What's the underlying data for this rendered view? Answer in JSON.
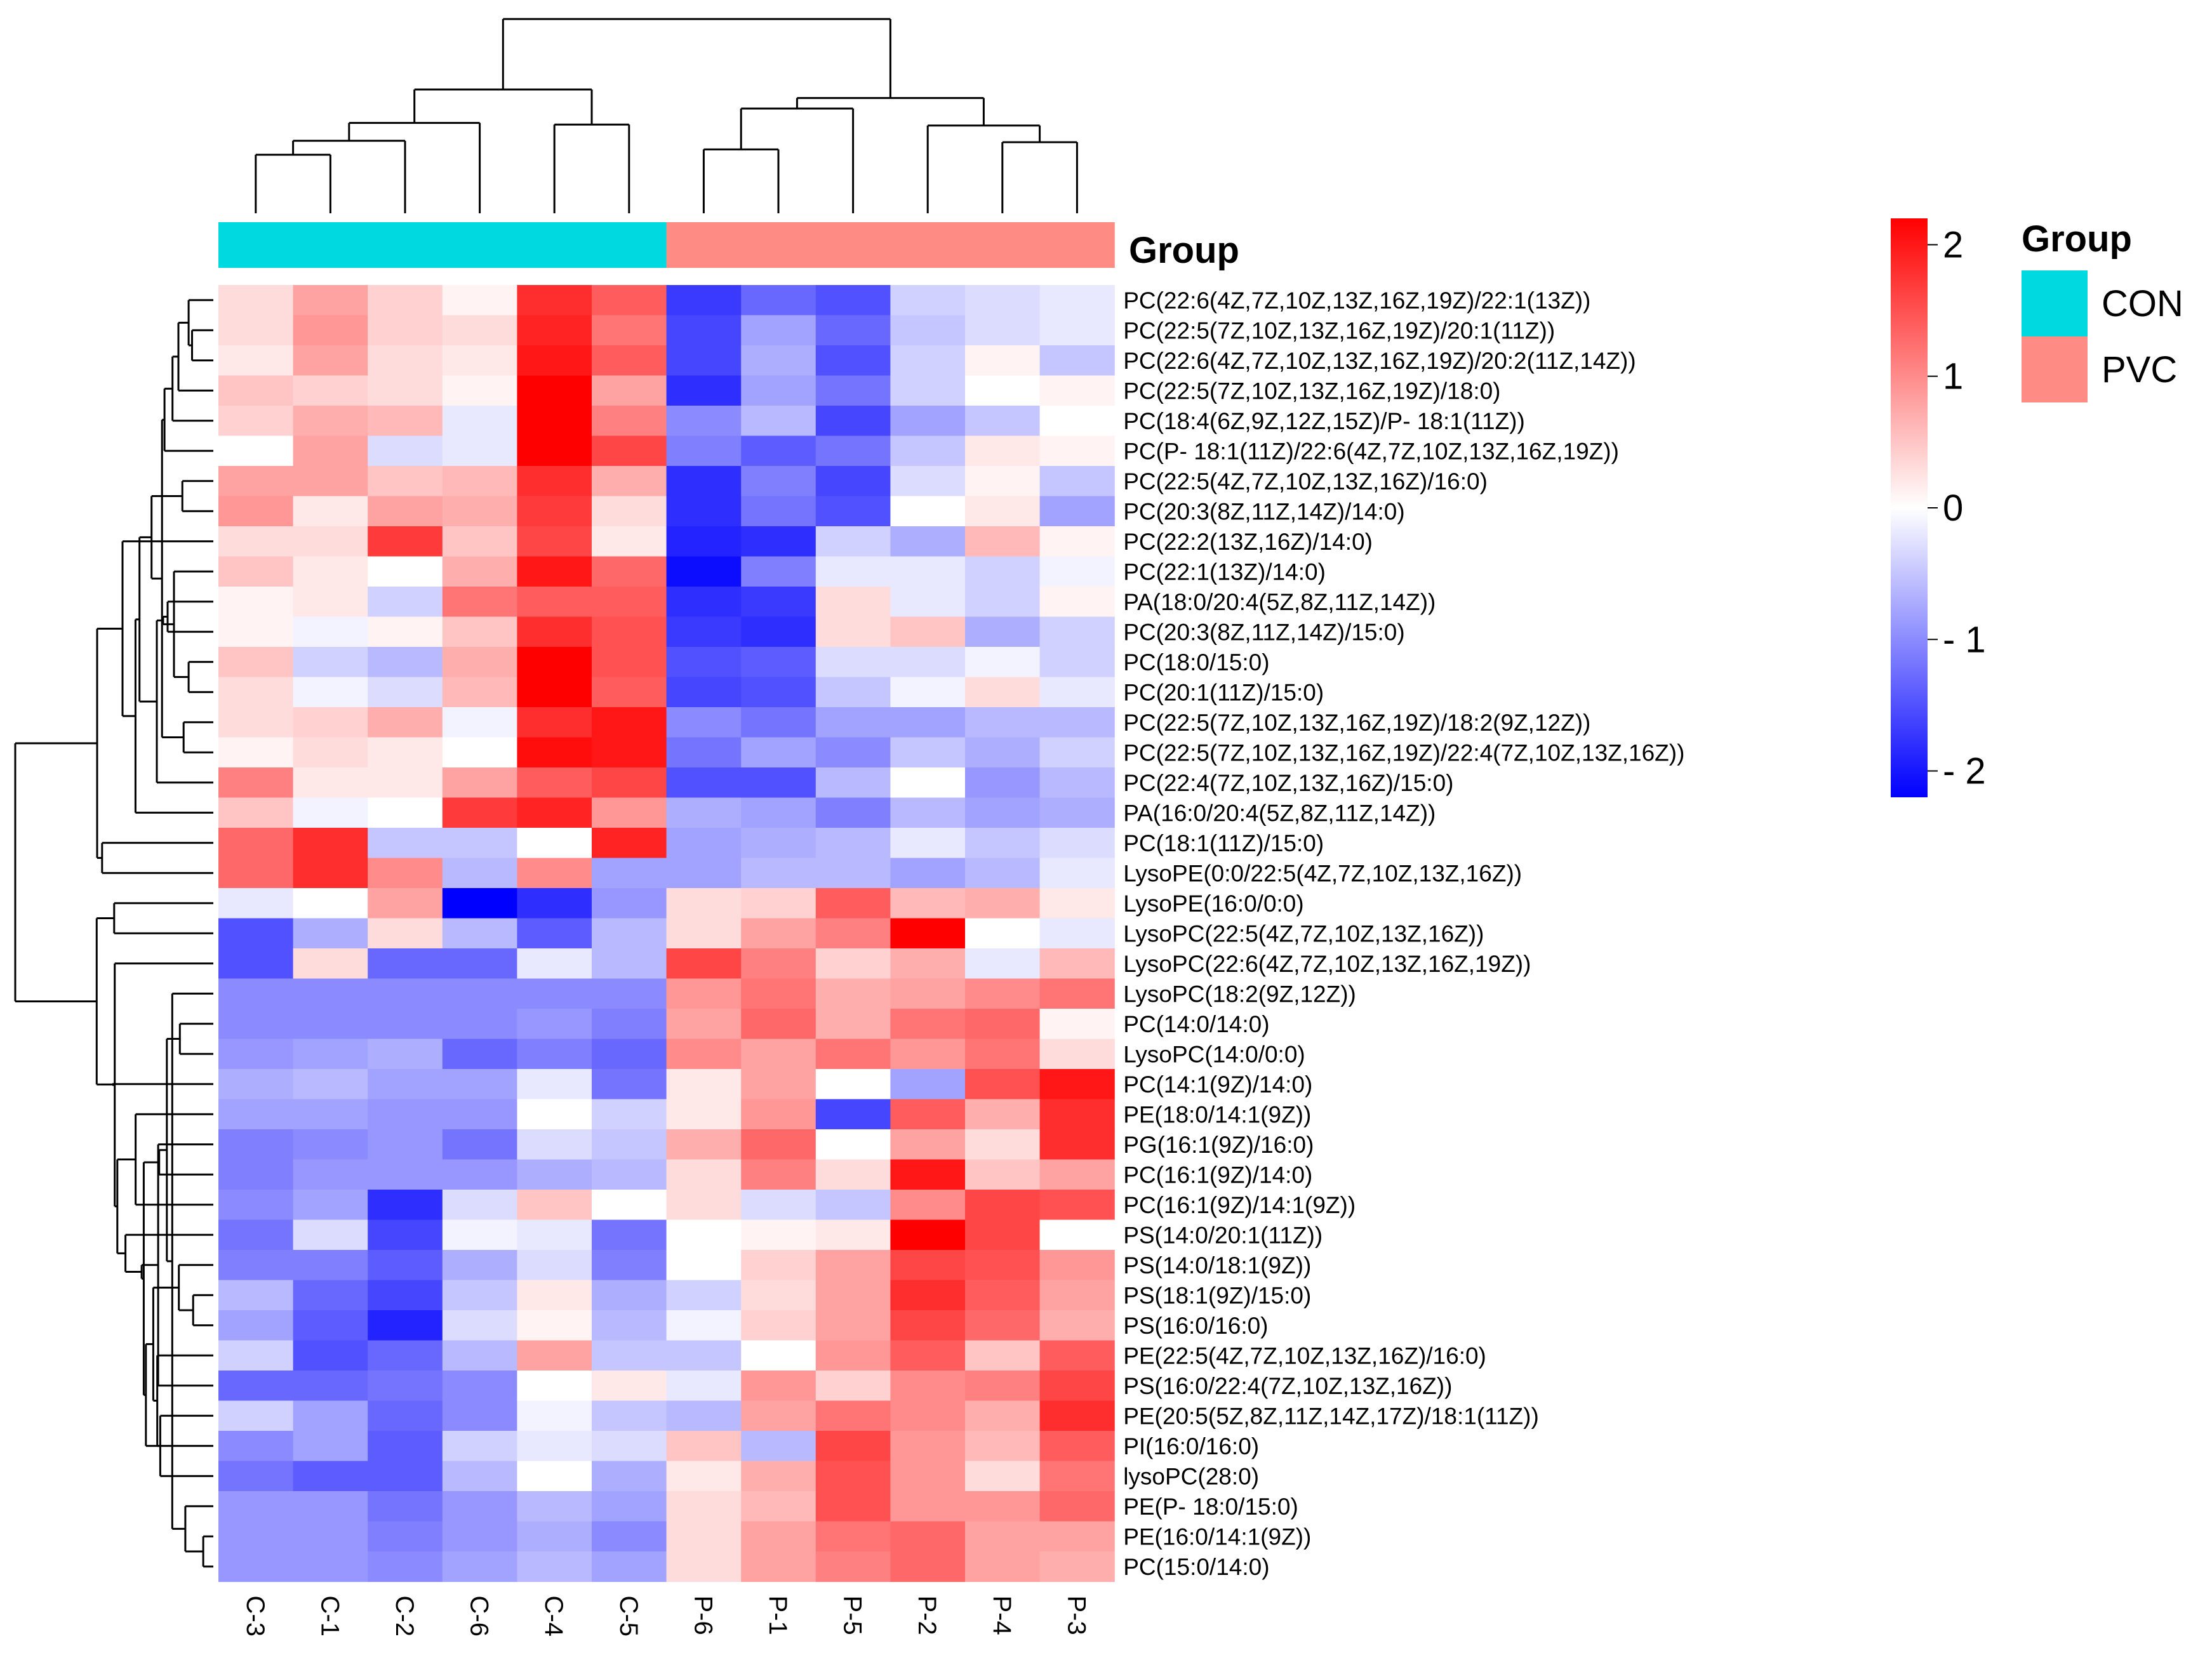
{
  "chart_data": {
    "type": "heatmap",
    "title": "",
    "columns": [
      "C-3",
      "C-1",
      "C-2",
      "C-6",
      "C-4",
      "C-5",
      "P-6",
      "P-1",
      "P-5",
      "P-2",
      "P-4",
      "P-3"
    ],
    "column_groups": [
      "CON",
      "CON",
      "CON",
      "CON",
      "CON",
      "CON",
      "PVC",
      "PVC",
      "PVC",
      "PVC",
      "PVC",
      "PVC"
    ],
    "rows": [
      "PC(22:6(4Z,7Z,10Z,13Z,16Z,19Z)/22:1(13Z))",
      "PC(22:5(7Z,10Z,13Z,16Z,19Z)/20:1(11Z))",
      "PC(22:6(4Z,7Z,10Z,13Z,16Z,19Z)/20:2(11Z,14Z))",
      "PC(22:5(7Z,10Z,13Z,16Z,19Z)/18:0)",
      "PC(18:4(6Z,9Z,12Z,15Z)/P- 18:1(11Z))",
      "PC(P- 18:1(11Z)/22:6(4Z,7Z,10Z,13Z,16Z,19Z))",
      "PC(22:5(4Z,7Z,10Z,13Z,16Z)/16:0)",
      "PC(20:3(8Z,11Z,14Z)/14:0)",
      "PC(22:2(13Z,16Z)/14:0)",
      "PC(22:1(13Z)/14:0)",
      "PA(18:0/20:4(5Z,8Z,11Z,14Z))",
      "PC(20:3(8Z,11Z,14Z)/15:0)",
      "PC(18:0/15:0)",
      "PC(20:1(11Z)/15:0)",
      "PC(22:5(7Z,10Z,13Z,16Z,19Z)/18:2(9Z,12Z))",
      "PC(22:5(7Z,10Z,13Z,16Z,19Z)/22:4(7Z,10Z,13Z,16Z))",
      "PC(22:4(7Z,10Z,13Z,16Z)/15:0)",
      "PA(16:0/20:4(5Z,8Z,11Z,14Z))",
      "PC(18:1(11Z)/15:0)",
      "LysoPE(0:0/22:5(4Z,7Z,10Z,13Z,16Z))",
      "LysoPE(16:0/0:0)",
      "LysoPC(22:5(4Z,7Z,10Z,13Z,16Z))",
      "LysoPC(22:6(4Z,7Z,10Z,13Z,16Z,19Z))",
      "LysoPC(18:2(9Z,12Z))",
      "PC(14:0/14:0)",
      "LysoPC(14:0/0:0)",
      "PC(14:1(9Z)/14:0)",
      "PE(18:0/14:1(9Z))",
      "PG(16:1(9Z)/16:0)",
      "PC(16:1(9Z)/14:0)",
      "PC(16:1(9Z)/14:1(9Z))",
      "PS(14:0/20:1(11Z))",
      "PS(14:0/18:1(9Z))",
      "PS(18:1(9Z)/15:0)",
      "PS(16:0/16:0)",
      "PE(22:5(4Z,7Z,10Z,13Z,16Z)/16:0)",
      "PS(16:0/22:4(7Z,10Z,13Z,16Z))",
      "PE(20:5(5Z,8Z,11Z,14Z,17Z)/18:1(11Z))",
      "PI(16:0/16:0)",
      "lysoPC(28:0)",
      "PE(P- 18:0/15:0)",
      "PE(16:0/14:1(9Z))",
      "PC(15:0/14:0)"
    ],
    "values": [
      [
        0.3,
        0.8,
        0.4,
        0.1,
        1.8,
        1.4,
        -1.7,
        -1.3,
        -1.5,
        -0.4,
        -0.3,
        -0.2
      ],
      [
        0.3,
        0.9,
        0.4,
        0.3,
        1.9,
        1.2,
        -1.6,
        -0.8,
        -1.3,
        -0.5,
        -0.3,
        -0.2
      ],
      [
        0.2,
        0.8,
        0.3,
        0.2,
        2.0,
        1.4,
        -1.6,
        -0.7,
        -1.5,
        -0.4,
        0.1,
        -0.5
      ],
      [
        0.5,
        0.4,
        0.3,
        0.1,
        2.2,
        0.8,
        -1.8,
        -0.8,
        -1.2,
        -0.4,
        0.0,
        0.1
      ],
      [
        0.4,
        0.7,
        0.6,
        -0.2,
        2.2,
        1.1,
        -1.0,
        -0.6,
        -1.6,
        -0.8,
        -0.5,
        0.0
      ],
      [
        0.0,
        0.8,
        -0.3,
        -0.2,
        2.2,
        1.6,
        -1.1,
        -1.4,
        -1.2,
        -0.5,
        0.2,
        0.1
      ],
      [
        0.8,
        0.8,
        0.5,
        0.6,
        1.8,
        0.7,
        -1.8,
        -1.1,
        -1.6,
        -0.3,
        0.1,
        -0.5
      ],
      [
        0.9,
        0.2,
        0.8,
        0.7,
        1.7,
        0.3,
        -1.8,
        -1.2,
        -1.5,
        0.0,
        0.2,
        -0.8
      ],
      [
        0.3,
        0.3,
        1.7,
        0.5,
        1.6,
        0.2,
        -1.9,
        -1.8,
        -0.4,
        -0.7,
        0.6,
        0.1
      ],
      [
        0.5,
        0.2,
        0.0,
        0.7,
        2.0,
        1.3,
        -2.1,
        -1.1,
        -0.2,
        -0.2,
        -0.4,
        -0.1
      ],
      [
        0.1,
        0.2,
        -0.4,
        1.2,
        1.4,
        1.4,
        -1.8,
        -1.7,
        0.3,
        -0.2,
        -0.4,
        0.1
      ],
      [
        0.1,
        -0.1,
        0.1,
        0.5,
        1.8,
        1.5,
        -1.7,
        -1.8,
        0.3,
        0.5,
        -0.7,
        -0.4
      ],
      [
        0.5,
        -0.4,
        -0.6,
        0.7,
        2.2,
        1.5,
        -1.5,
        -1.4,
        -0.3,
        -0.3,
        -0.1,
        -0.4
      ],
      [
        0.3,
        -0.1,
        -0.3,
        0.6,
        2.2,
        1.4,
        -1.6,
        -1.5,
        -0.5,
        -0.1,
        0.3,
        -0.2
      ],
      [
        0.3,
        0.4,
        0.7,
        -0.1,
        1.8,
        2.0,
        -1.0,
        -1.2,
        -0.8,
        -0.8,
        -0.6,
        -0.6
      ],
      [
        0.1,
        0.3,
        0.2,
        0.0,
        2.1,
        2.0,
        -1.2,
        -0.8,
        -1.0,
        -0.5,
        -0.7,
        -0.4
      ],
      [
        1.1,
        0.2,
        0.2,
        0.8,
        1.4,
        1.6,
        -1.5,
        -1.5,
        -0.6,
        0.0,
        -0.9,
        -0.6
      ],
      [
        0.5,
        -0.1,
        0.0,
        1.7,
        1.9,
        0.9,
        -0.7,
        -0.8,
        -1.1,
        -0.6,
        -0.8,
        -0.7
      ],
      [
        1.3,
        1.8,
        -0.5,
        -0.5,
        0.0,
        1.9,
        -0.8,
        -0.7,
        -0.6,
        -0.2,
        -0.5,
        -0.3
      ],
      [
        1.3,
        1.8,
        1.0,
        -0.6,
        1.0,
        -0.8,
        -0.8,
        -0.6,
        -0.6,
        -0.8,
        -0.6,
        -0.2
      ],
      [
        -0.2,
        0.0,
        0.8,
        -2.2,
        -1.8,
        -0.9,
        0.3,
        0.4,
        1.4,
        0.6,
        0.7,
        0.2
      ],
      [
        -1.5,
        -0.7,
        0.3,
        -0.6,
        -1.4,
        -0.6,
        0.3,
        0.8,
        1.1,
        2.2,
        0.0,
        -0.2
      ],
      [
        -1.5,
        0.3,
        -1.3,
        -1.3,
        -0.2,
        -0.6,
        1.6,
        1.1,
        0.4,
        0.7,
        -0.2,
        0.6
      ],
      [
        -1.0,
        -1.0,
        -1.0,
        -1.0,
        -1.0,
        -1.0,
        0.9,
        1.2,
        0.7,
        0.8,
        1.0,
        1.2
      ],
      [
        -1.0,
        -1.0,
        -1.0,
        -1.0,
        -0.9,
        -1.1,
        0.8,
        1.3,
        0.7,
        1.2,
        1.3,
        0.1
      ],
      [
        -0.9,
        -0.8,
        -0.7,
        -1.3,
        -1.1,
        -1.3,
        1.0,
        0.8,
        1.2,
        0.9,
        1.2,
        0.3
      ],
      [
        -0.7,
        -0.6,
        -0.8,
        -0.8,
        -0.2,
        -1.2,
        0.2,
        0.8,
        0.0,
        -0.8,
        1.5,
        2.0
      ],
      [
        -0.8,
        -0.8,
        -0.9,
        -0.9,
        0.0,
        -0.4,
        0.2,
        0.9,
        -1.6,
        1.4,
        0.7,
        1.8
      ],
      [
        -1.1,
        -1.0,
        -0.9,
        -1.2,
        -0.3,
        -0.5,
        0.7,
        1.3,
        0.0,
        0.8,
        0.3,
        1.8
      ],
      [
        -1.1,
        -0.9,
        -0.9,
        -0.9,
        -0.7,
        -0.6,
        0.3,
        1.1,
        0.3,
        2.0,
        0.5,
        0.8
      ],
      [
        -1.0,
        -0.8,
        -1.8,
        -0.3,
        0.5,
        0.0,
        0.3,
        -0.3,
        -0.5,
        1.0,
        1.6,
        1.5
      ],
      [
        -1.2,
        -0.3,
        -1.6,
        -0.1,
        -0.2,
        -1.2,
        0.0,
        0.1,
        0.2,
        2.3,
        1.6,
        0.0
      ],
      [
        -1.1,
        -1.1,
        -1.4,
        -0.7,
        -0.3,
        -1.1,
        0.0,
        0.4,
        0.8,
        1.6,
        1.5,
        0.9
      ],
      [
        -0.6,
        -1.3,
        -1.6,
        -0.5,
        0.2,
        -0.7,
        -0.4,
        0.3,
        0.8,
        1.8,
        1.4,
        0.8
      ],
      [
        -0.8,
        -1.4,
        -1.9,
        -0.3,
        0.1,
        -0.6,
        -0.1,
        0.4,
        0.8,
        1.6,
        1.3,
        0.7
      ],
      [
        -0.4,
        -1.5,
        -1.3,
        -0.6,
        0.8,
        -0.5,
        -0.5,
        0.0,
        0.9,
        1.4,
        0.5,
        1.4
      ],
      [
        -1.3,
        -1.3,
        -1.2,
        -1.0,
        0.0,
        0.2,
        -0.2,
        0.9,
        0.4,
        1.0,
        1.1,
        1.6
      ],
      [
        -0.4,
        -0.8,
        -1.3,
        -1.0,
        -0.1,
        -0.5,
        -0.6,
        0.8,
        1.2,
        1.0,
        0.7,
        1.8
      ],
      [
        -1.0,
        -0.8,
        -1.4,
        -0.4,
        -0.2,
        -0.3,
        0.5,
        -0.6,
        1.6,
        0.9,
        0.6,
        1.4
      ],
      [
        -1.2,
        -1.4,
        -1.4,
        -0.6,
        0.0,
        -0.7,
        0.2,
        0.7,
        1.5,
        0.9,
        0.3,
        1.2
      ],
      [
        -0.9,
        -0.9,
        -1.2,
        -0.9,
        -0.6,
        -0.8,
        0.3,
        0.6,
        1.5,
        0.9,
        0.9,
        1.3
      ],
      [
        -0.9,
        -0.9,
        -1.1,
        -0.9,
        -0.7,
        -1.0,
        0.3,
        0.8,
        1.2,
        1.3,
        0.8,
        0.8
      ],
      [
        -0.9,
        -0.9,
        -1.0,
        -0.8,
        -0.6,
        -0.8,
        0.3,
        0.8,
        1.1,
        1.3,
        0.8,
        0.7
      ]
    ],
    "color_scale": {
      "min": -2.2,
      "max": 2.2,
      "low": "#0000ff",
      "mid": "#ffffff",
      "high": "#ff0000"
    },
    "colorbar_ticks": [
      {
        "value": 2,
        "label": "2"
      },
      {
        "value": 1,
        "label": "1"
      },
      {
        "value": 0,
        "label": "0"
      },
      {
        "value": -1,
        "label": "- 1"
      },
      {
        "value": -2,
        "label": "- 2"
      }
    ],
    "annotation": {
      "title": "Group",
      "legend_title": "Group",
      "levels": [
        {
          "name": "CON",
          "color": "#00d9e0"
        },
        {
          "name": "PVC",
          "color": "#ff8c84"
        }
      ]
    }
  }
}
